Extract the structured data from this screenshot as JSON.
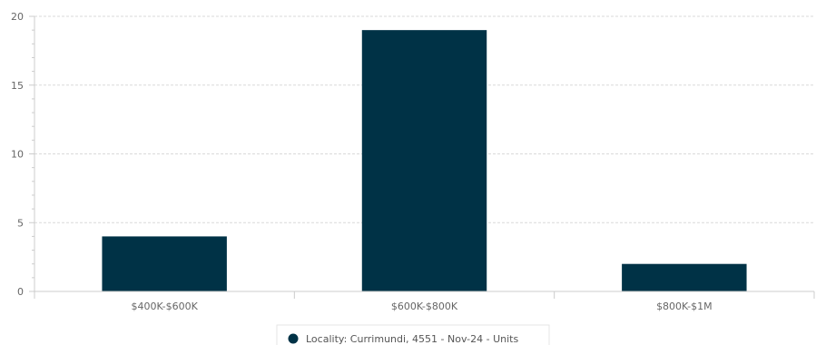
{
  "chart_data": {
    "type": "bar",
    "categories": [
      "$400K-$600K",
      "$600K-$800K",
      "$800K-$1M"
    ],
    "series": [
      {
        "name": "Locality: Currimundi, 4551 - Nov-24 - Units",
        "values": [
          4,
          19,
          2
        ],
        "color": "#003246"
      }
    ],
    "ylim": [
      0,
      20
    ],
    "yticks": [
      0,
      5,
      10,
      15,
      20
    ],
    "grid": true,
    "legend": "bottom-center"
  }
}
